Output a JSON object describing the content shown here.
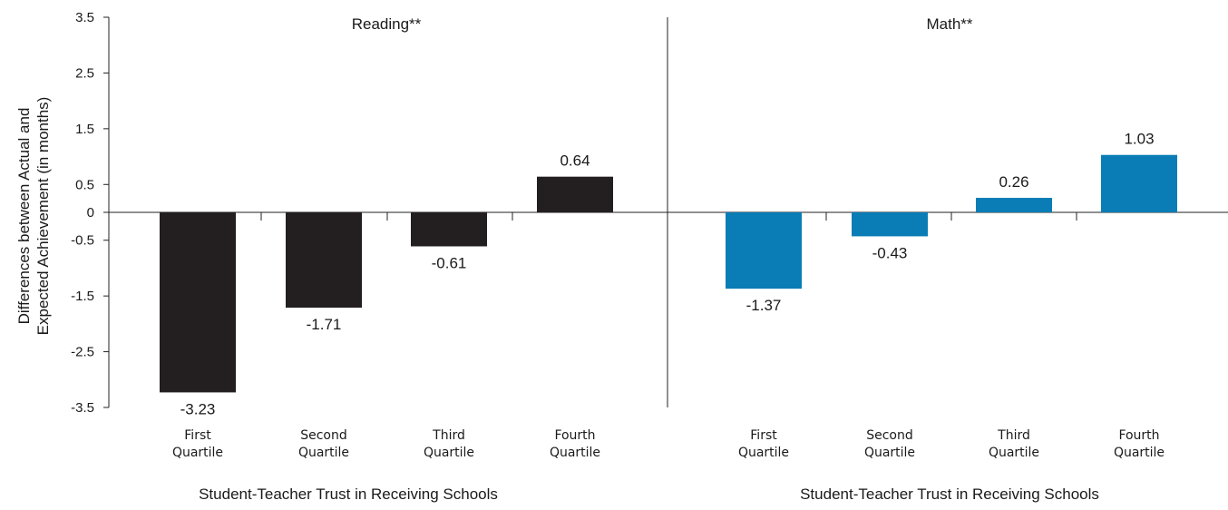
{
  "chart_data": {
    "type": "bar",
    "ylabel_lines": [
      "Differences between Actual and",
      "Expected Achievement (in months)"
    ],
    "ylim": [
      -3.5,
      3.5
    ],
    "yticks": [
      "3.5",
      "2.5",
      "1.5",
      "0.5",
      "0",
      "-0.5",
      "-1.5",
      "-2.5",
      "-3.5"
    ],
    "ytick_values": [
      3.5,
      2.5,
      1.5,
      0.5,
      0,
      -0.5,
      -1.5,
      -2.5,
      -3.5
    ],
    "categories": [
      [
        "First",
        "Quartile"
      ],
      [
        "Second",
        "Quartile"
      ],
      [
        "Third",
        "Quartile"
      ],
      [
        "Fourth",
        "Quartile"
      ]
    ],
    "panels": [
      {
        "title": "Reading**",
        "xlabel": "Student-Teacher Trust in Receiving Schools",
        "color": "#231f20",
        "values": [
          -3.23,
          -1.71,
          -0.61,
          0.64
        ],
        "value_labels": [
          "-3.23",
          "-1.71",
          "-0.61",
          "0.64"
        ]
      },
      {
        "title": "Math**",
        "xlabel": "Student-Teacher Trust in Receiving Schools",
        "color": "#0a7db6",
        "values": [
          -1.37,
          -0.43,
          0.26,
          1.03
        ],
        "value_labels": [
          "-1.37",
          "-0.43",
          "0.26",
          "1.03"
        ]
      }
    ],
    "grid": false,
    "legend": "none"
  }
}
